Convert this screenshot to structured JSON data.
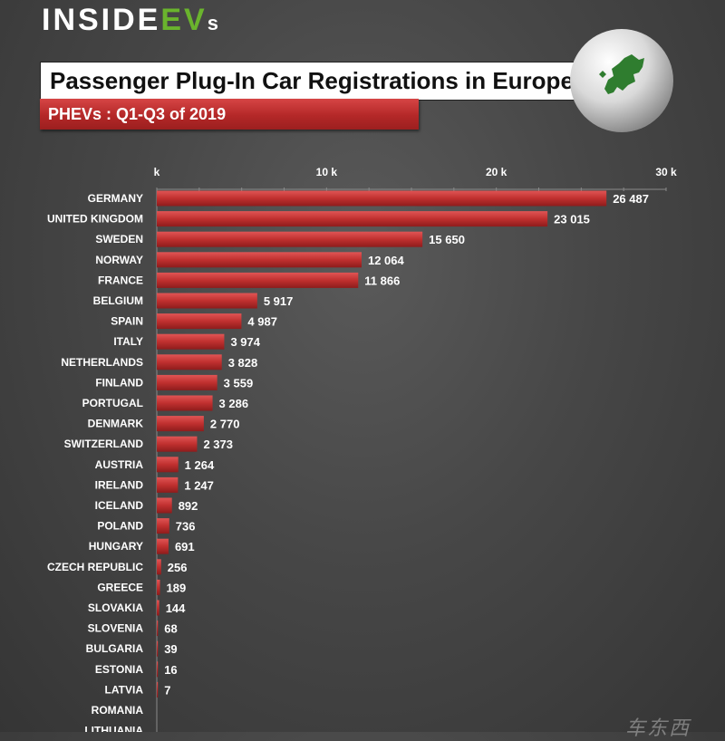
{
  "brand": {
    "main": "INSIDE",
    "ev": "EV",
    "s": "s"
  },
  "chart_data": {
    "type": "bar",
    "orientation": "horizontal",
    "title": "Passenger Plug-In Car Registrations in Europe",
    "subtitle": "PHEVs : Q1-Q3  of 2019",
    "x_ticks": [
      "k",
      "10 k",
      "20 k",
      "30 k"
    ],
    "xlim": [
      0,
      30000
    ],
    "categories": [
      "GERMANY",
      "UNITED KINGDOM",
      "SWEDEN",
      "NORWAY",
      "FRANCE",
      "BELGIUM",
      "SPAIN",
      "ITALY",
      "NETHERLANDS",
      "FINLAND",
      "PORTUGAL",
      "DENMARK",
      "SWITZERLAND",
      "AUSTRIA",
      "IRELAND",
      "ICELAND",
      "POLAND",
      "HUNGARY",
      "CZECH REPUBLIC",
      "GREECE",
      "SLOVAKIA",
      "SLOVENIA",
      "BULGARIA",
      "ESTONIA",
      "LATVIA",
      "ROMANIA",
      "LITHUANIA"
    ],
    "values": [
      26487,
      23015,
      15650,
      12064,
      11866,
      5917,
      4987,
      3974,
      3828,
      3559,
      3286,
      2770,
      2373,
      1264,
      1247,
      892,
      736,
      691,
      256,
      189,
      144,
      68,
      39,
      16,
      7,
      null,
      null
    ],
    "value_labels": [
      "26 487",
      "23 015",
      "15 650",
      "12 064",
      "11 866",
      "5 917",
      "4 987",
      "3 974",
      "3 828",
      "3 559",
      "3 286",
      "2 770",
      "2 373",
      "1 264",
      "1 247",
      "892",
      "736",
      "691",
      "256",
      "189",
      "144",
      "68",
      "39",
      "16",
      "7",
      "",
      ""
    ],
    "grid": false,
    "bar_color": "#c0302f"
  },
  "watermark": "车东西"
}
